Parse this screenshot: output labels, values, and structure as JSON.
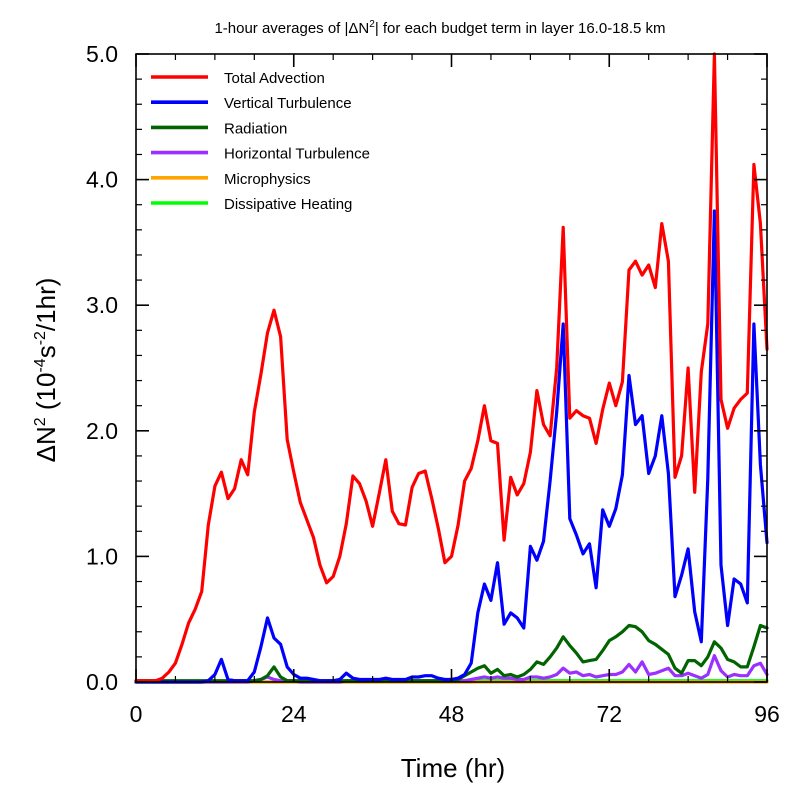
{
  "chart_data": {
    "type": "line",
    "title": "1-hour averages of |ΔN2| for each budget term in layer 16.0-18.5 km",
    "xlabel": "Time (hr)",
    "ylabel": "ΔN2 (10-4s-2/1hr)",
    "xlim": [
      0,
      96
    ],
    "ylim": [
      0,
      5
    ],
    "xticks": [
      0,
      24,
      48,
      72,
      96
    ],
    "xtick_labels": [
      "0",
      "24",
      "48",
      "72",
      "96"
    ],
    "yticks": [
      0,
      1,
      2,
      3,
      4,
      5
    ],
    "ytick_labels": [
      "0.0",
      "1.0",
      "2.0",
      "3.0",
      "4.0",
      "5.0"
    ],
    "grid": false,
    "legend_position": "top-left",
    "x": [
      0,
      1,
      2,
      3,
      4,
      5,
      6,
      7,
      8,
      9,
      10,
      11,
      12,
      13,
      14,
      15,
      16,
      17,
      18,
      19,
      20,
      21,
      22,
      23,
      24,
      25,
      26,
      27,
      28,
      29,
      30,
      31,
      32,
      33,
      34,
      35,
      36,
      37,
      38,
      39,
      40,
      41,
      42,
      43,
      44,
      45,
      46,
      47,
      48,
      49,
      50,
      51,
      52,
      53,
      54,
      55,
      56,
      57,
      58,
      59,
      60,
      61,
      62,
      63,
      64,
      65,
      66,
      67,
      68,
      69,
      70,
      71,
      72,
      73,
      74,
      75,
      76,
      77,
      78,
      79,
      80,
      81,
      82,
      83,
      84,
      85,
      86,
      87,
      88,
      89,
      90,
      91,
      92,
      93,
      94,
      95,
      96
    ],
    "series": [
      {
        "name": "Total Advection",
        "color": "#ff0000",
        "values": [
          0.01,
          0.01,
          0.01,
          0.01,
          0.03,
          0.08,
          0.15,
          0.3,
          0.47,
          0.58,
          0.72,
          1.25,
          1.56,
          1.67,
          1.46,
          1.54,
          1.77,
          1.65,
          2.15,
          2.45,
          2.78,
          2.96,
          2.75,
          1.93,
          1.67,
          1.43,
          1.29,
          1.15,
          0.93,
          0.79,
          0.84,
          1.0,
          1.26,
          1.64,
          1.58,
          1.44,
          1.24,
          1.5,
          1.77,
          1.36,
          1.26,
          1.25,
          1.55,
          1.66,
          1.68,
          1.46,
          1.22,
          0.95,
          1.0,
          1.25,
          1.6,
          1.7,
          1.92,
          2.2,
          1.92,
          1.9,
          1.13,
          1.63,
          1.49,
          1.58,
          1.83,
          2.32,
          2.05,
          1.96,
          2.5,
          3.62,
          2.1,
          2.16,
          2.12,
          2.1,
          1.9,
          2.17,
          2.38,
          2.2,
          2.39,
          3.28,
          3.35,
          3.24,
          3.32,
          3.14,
          3.65,
          3.35,
          1.63,
          1.8,
          2.5,
          1.51,
          2.47,
          2.85,
          5.0,
          2.25,
          2.02,
          2.18,
          2.25,
          2.3,
          4.12,
          3.65,
          2.65
        ]
      },
      {
        "name": "Vertical Turbulence",
        "color": "#0000ff",
        "values": [
          0.0,
          0.0,
          0.0,
          0.0,
          0.0,
          0.0,
          0.0,
          0.0,
          0.0,
          0.0,
          0.0,
          0.01,
          0.06,
          0.18,
          0.02,
          0.01,
          0.01,
          0.01,
          0.08,
          0.28,
          0.51,
          0.35,
          0.3,
          0.12,
          0.06,
          0.03,
          0.03,
          0.02,
          0.01,
          0.01,
          0.01,
          0.02,
          0.07,
          0.03,
          0.02,
          0.02,
          0.02,
          0.02,
          0.03,
          0.02,
          0.02,
          0.02,
          0.04,
          0.04,
          0.05,
          0.05,
          0.03,
          0.02,
          0.02,
          0.03,
          0.06,
          0.15,
          0.55,
          0.78,
          0.65,
          0.95,
          0.46,
          0.55,
          0.51,
          0.43,
          1.08,
          0.97,
          1.12,
          1.6,
          2.15,
          2.85,
          1.3,
          1.17,
          1.02,
          1.1,
          0.75,
          1.37,
          1.24,
          1.38,
          1.65,
          2.44,
          2.05,
          2.12,
          1.66,
          1.8,
          2.12,
          1.66,
          0.68,
          0.85,
          1.06,
          0.56,
          0.32,
          1.62,
          3.75,
          0.93,
          0.45,
          0.82,
          0.78,
          0.63,
          2.85,
          1.73,
          1.11
        ]
      },
      {
        "name": "Radiation",
        "color": "#006400",
        "values": [
          0.01,
          0.01,
          0.01,
          0.01,
          0.01,
          0.01,
          0.01,
          0.01,
          0.01,
          0.01,
          0.01,
          0.01,
          0.01,
          0.01,
          0.01,
          0.01,
          0.01,
          0.01,
          0.01,
          0.02,
          0.05,
          0.12,
          0.04,
          0.01,
          0.01,
          0.01,
          0.01,
          0.01,
          0.01,
          0.01,
          0.01,
          0.01,
          0.01,
          0.01,
          0.01,
          0.01,
          0.01,
          0.01,
          0.01,
          0.01,
          0.01,
          0.01,
          0.01,
          0.01,
          0.01,
          0.01,
          0.01,
          0.01,
          0.01,
          0.02,
          0.05,
          0.08,
          0.11,
          0.13,
          0.07,
          0.1,
          0.05,
          0.06,
          0.04,
          0.06,
          0.1,
          0.16,
          0.14,
          0.2,
          0.27,
          0.36,
          0.29,
          0.23,
          0.16,
          0.17,
          0.18,
          0.25,
          0.33,
          0.36,
          0.4,
          0.45,
          0.44,
          0.4,
          0.33,
          0.3,
          0.26,
          0.22,
          0.11,
          0.07,
          0.17,
          0.17,
          0.13,
          0.2,
          0.32,
          0.27,
          0.18,
          0.16,
          0.12,
          0.12,
          0.28,
          0.45,
          0.43
        ]
      },
      {
        "name": "Horizontal Turbulence",
        "color": "#9b30ff",
        "values": [
          0.0,
          0.0,
          0.0,
          0.0,
          0.0,
          0.0,
          0.0,
          0.0,
          0.0,
          0.0,
          0.0,
          0.0,
          0.0,
          0.0,
          0.0,
          0.0,
          0.0,
          0.0,
          0.01,
          0.02,
          0.04,
          0.02,
          0.01,
          0.01,
          0.01,
          0.0,
          0.0,
          0.0,
          0.0,
          0.0,
          0.0,
          0.0,
          0.01,
          0.01,
          0.01,
          0.01,
          0.01,
          0.01,
          0.01,
          0.01,
          0.01,
          0.01,
          0.01,
          0.01,
          0.01,
          0.01,
          0.01,
          0.01,
          0.01,
          0.01,
          0.01,
          0.02,
          0.03,
          0.04,
          0.03,
          0.04,
          0.03,
          0.03,
          0.02,
          0.02,
          0.04,
          0.04,
          0.03,
          0.04,
          0.06,
          0.11,
          0.07,
          0.08,
          0.05,
          0.06,
          0.04,
          0.05,
          0.06,
          0.06,
          0.08,
          0.14,
          0.08,
          0.16,
          0.06,
          0.07,
          0.09,
          0.11,
          0.05,
          0.05,
          0.07,
          0.05,
          0.03,
          0.06,
          0.21,
          0.09,
          0.04,
          0.06,
          0.05,
          0.05,
          0.13,
          0.15,
          0.06
        ]
      },
      {
        "name": "Microphysics",
        "color": "#ffa500",
        "values": [
          0.0,
          0.0,
          0.0,
          0.0,
          0.0,
          0.0,
          0.0,
          0.0,
          0.0,
          0.0,
          0.0,
          0.0,
          0.0,
          0.0,
          0.0,
          0.0,
          0.0,
          0.0,
          0.0,
          0.0,
          0.0,
          0.0,
          0.0,
          0.0,
          0.0,
          0.0,
          0.0,
          0.0,
          0.0,
          0.0,
          0.0,
          0.0,
          0.0,
          0.0,
          0.0,
          0.0,
          0.0,
          0.0,
          0.0,
          0.0,
          0.0,
          0.0,
          0.0,
          0.0,
          0.0,
          0.0,
          0.0,
          0.0,
          0.0,
          0.0,
          0.0,
          0.0,
          0.0,
          0.0,
          0.0,
          0.0,
          0.0,
          0.0,
          0.0,
          0.0,
          0.0,
          0.0,
          0.0,
          0.0,
          0.0,
          0.0,
          0.0,
          0.0,
          0.0,
          0.0,
          0.0,
          0.0,
          0.0,
          0.0,
          0.0,
          0.0,
          0.0,
          0.0,
          0.0,
          0.0,
          0.0,
          0.0,
          0.0,
          0.0,
          0.0,
          0.0,
          0.0,
          0.0,
          0.0,
          0.0,
          0.0,
          0.0,
          0.0,
          0.0,
          0.0,
          0.0,
          0.0
        ]
      },
      {
        "name": "Dissipative Heating",
        "color": "#00ff00",
        "values": [
          0.0,
          0.0,
          0.0,
          0.0,
          0.0,
          0.0,
          0.0,
          0.0,
          0.0,
          0.0,
          0.0,
          0.0,
          0.0,
          0.0,
          0.0,
          0.0,
          0.0,
          0.0,
          0.0,
          0.0,
          0.0,
          0.0,
          0.0,
          0.0,
          0.0,
          0.0,
          0.0,
          0.0,
          0.0,
          0.0,
          0.0,
          0.0,
          0.0,
          0.0,
          0.0,
          0.0,
          0.0,
          0.0,
          0.0,
          0.0,
          0.0,
          0.0,
          0.0,
          0.0,
          0.0,
          0.0,
          0.0,
          0.0,
          0.0,
          0.0,
          0.0,
          0.0,
          0.01,
          0.01,
          0.01,
          0.01,
          0.01,
          0.01,
          0.01,
          0.01,
          0.01,
          0.01,
          0.01,
          0.01,
          0.01,
          0.01,
          0.01,
          0.01,
          0.01,
          0.01,
          0.01,
          0.01,
          0.01,
          0.01,
          0.01,
          0.01,
          0.01,
          0.01,
          0.01,
          0.01,
          0.01,
          0.01,
          0.01,
          0.01,
          0.01,
          0.01,
          0.01,
          0.01,
          0.01,
          0.01,
          0.01,
          0.01,
          0.01,
          0.01,
          0.01,
          0.01,
          0.01
        ]
      }
    ]
  }
}
